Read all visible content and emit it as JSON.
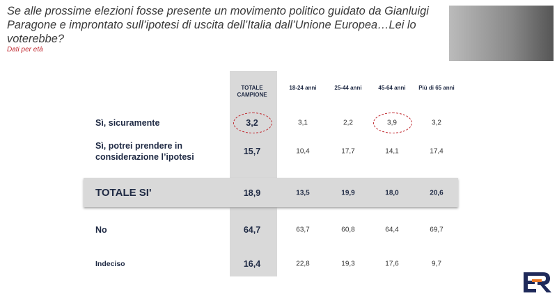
{
  "header": {
    "title": "Se alle prossime elezioni fosse presente un movimento politico guidato da Gianluigi Paragone e improntato sull’ipotesi di uscita dell’Italia dall’Unione Europea…Lei lo voterebbe?",
    "subtitle": "Dati per età"
  },
  "table": {
    "columns": [
      "TOTALE CAMPIONE",
      "18-24 anni",
      "25-44 anni",
      "45-64 anni",
      "Più di 65 anni"
    ],
    "rows": [
      [
        "Sì, sicuramente",
        "3,2",
        "3,1",
        "2,2",
        "3,9",
        "3,2"
      ],
      [
        "Sì, potrei prendere in considerazione l’ipotesi",
        "15,7",
        "10,4",
        "17,7",
        "14,1",
        "17,4"
      ],
      [
        "TOTALE SI'",
        "18,9",
        "13,5",
        "19,9",
        "18,0",
        "20,6"
      ],
      [
        "No",
        "64,7",
        "63,7",
        "60,8",
        "64,4",
        "69,7"
      ],
      [
        "Indeciso",
        "16,4",
        "22,8",
        "19,3",
        "17,6",
        "9,7"
      ]
    ]
  }
}
